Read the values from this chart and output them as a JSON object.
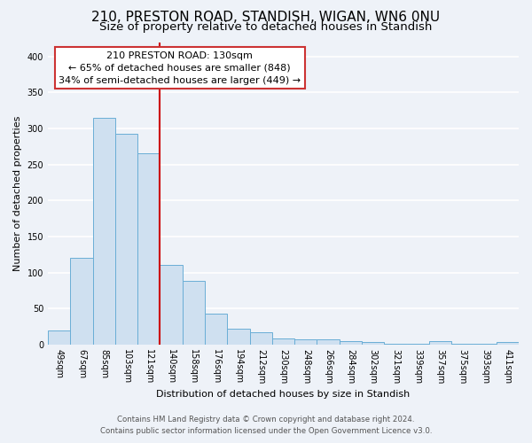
{
  "title1": "210, PRESTON ROAD, STANDISH, WIGAN, WN6 0NU",
  "title2": "Size of property relative to detached houses in Standish",
  "xlabel": "Distribution of detached houses by size in Standish",
  "ylabel": "Number of detached properties",
  "categories": [
    "49sqm",
    "67sqm",
    "85sqm",
    "103sqm",
    "121sqm",
    "140sqm",
    "158sqm",
    "176sqm",
    "194sqm",
    "212sqm",
    "230sqm",
    "248sqm",
    "266sqm",
    "284sqm",
    "302sqm",
    "321sqm",
    "339sqm",
    "357sqm",
    "375sqm",
    "393sqm",
    "411sqm"
  ],
  "values": [
    20,
    120,
    315,
    293,
    265,
    110,
    88,
    43,
    22,
    17,
    8,
    7,
    7,
    5,
    4,
    1,
    1,
    5,
    1,
    1,
    4
  ],
  "bar_color": "#cfe0f0",
  "bar_edge_color": "#6aaed6",
  "vline_x": 4.5,
  "vline_color": "#cc0000",
  "annotation_title": "210 PRESTON ROAD: 130sqm",
  "annotation_line1": "← 65% of detached houses are smaller (848)",
  "annotation_line2": "34% of semi-detached houses are larger (449) →",
  "annotation_box_color": "#ffffff",
  "annotation_box_edge": "#cc3333",
  "ylim": [
    0,
    420
  ],
  "yticks": [
    0,
    50,
    100,
    150,
    200,
    250,
    300,
    350,
    400
  ],
  "footnote1": "Contains HM Land Registry data © Crown copyright and database right 2024.",
  "footnote2": "Contains public sector information licensed under the Open Government Licence v3.0.",
  "bg_color": "#eef2f8",
  "grid_color": "#ffffff",
  "title1_fontsize": 11,
  "title2_fontsize": 9.5,
  "annotation_fontsize": 8,
  "axis_label_fontsize": 8,
  "tick_fontsize": 7
}
